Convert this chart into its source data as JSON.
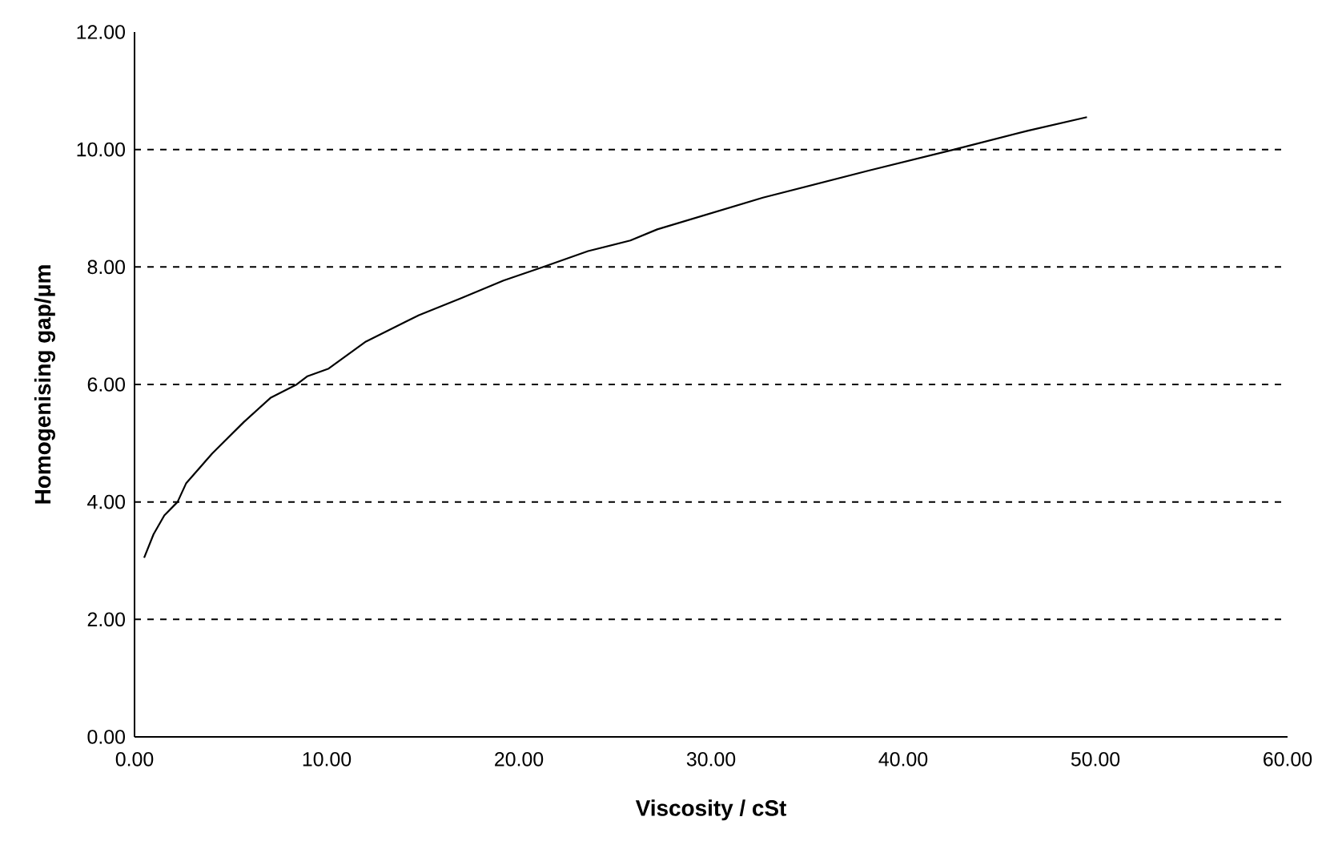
{
  "chart_data": {
    "type": "line",
    "xlabel": "Viscosity / cSt",
    "ylabel": "Homogenising gap/μm",
    "x": [
      0.5,
      0.99,
      1.55,
      2.24,
      2.69,
      4.03,
      5.69,
      7.07,
      8.44,
      9.0,
      10.1,
      12.04,
      14.8,
      17.0,
      19.2,
      21.27,
      23.6,
      25.8,
      27.2,
      32.7,
      38.2,
      42.66,
      46.5,
      49.56
    ],
    "series": [
      {
        "color": "#000000",
        "values": [
          3.05,
          3.45,
          3.77,
          4.0,
          4.32,
          4.82,
          5.36,
          5.77,
          6.0,
          6.14,
          6.27,
          6.73,
          7.18,
          7.47,
          7.77,
          8.0,
          8.27,
          8.45,
          8.64,
          9.18,
          9.64,
          10.0,
          10.32,
          10.55
        ]
      }
    ],
    "xlim": [
      0,
      60
    ],
    "ylim": [
      0,
      12
    ],
    "xticks": [
      {
        "value": 0,
        "label": "0.00"
      },
      {
        "value": 10,
        "label": "10.00"
      },
      {
        "value": 20,
        "label": "20.00"
      },
      {
        "value": 30,
        "label": "30.00"
      },
      {
        "value": 40,
        "label": "40.00"
      },
      {
        "value": 50,
        "label": "50.00"
      },
      {
        "value": 60,
        "label": "60.00"
      }
    ],
    "yticks": [
      {
        "value": 0,
        "label": "0.00"
      },
      {
        "value": 2,
        "label": "2.00"
      },
      {
        "value": 4,
        "label": "4.00"
      },
      {
        "value": 6,
        "label": "6.00"
      },
      {
        "value": 8,
        "label": "8.00"
      },
      {
        "value": 10,
        "label": "10.00"
      },
      {
        "value": 12,
        "label": "12.00"
      }
    ],
    "grid": "y",
    "line_style": "solid",
    "marker": "none"
  }
}
